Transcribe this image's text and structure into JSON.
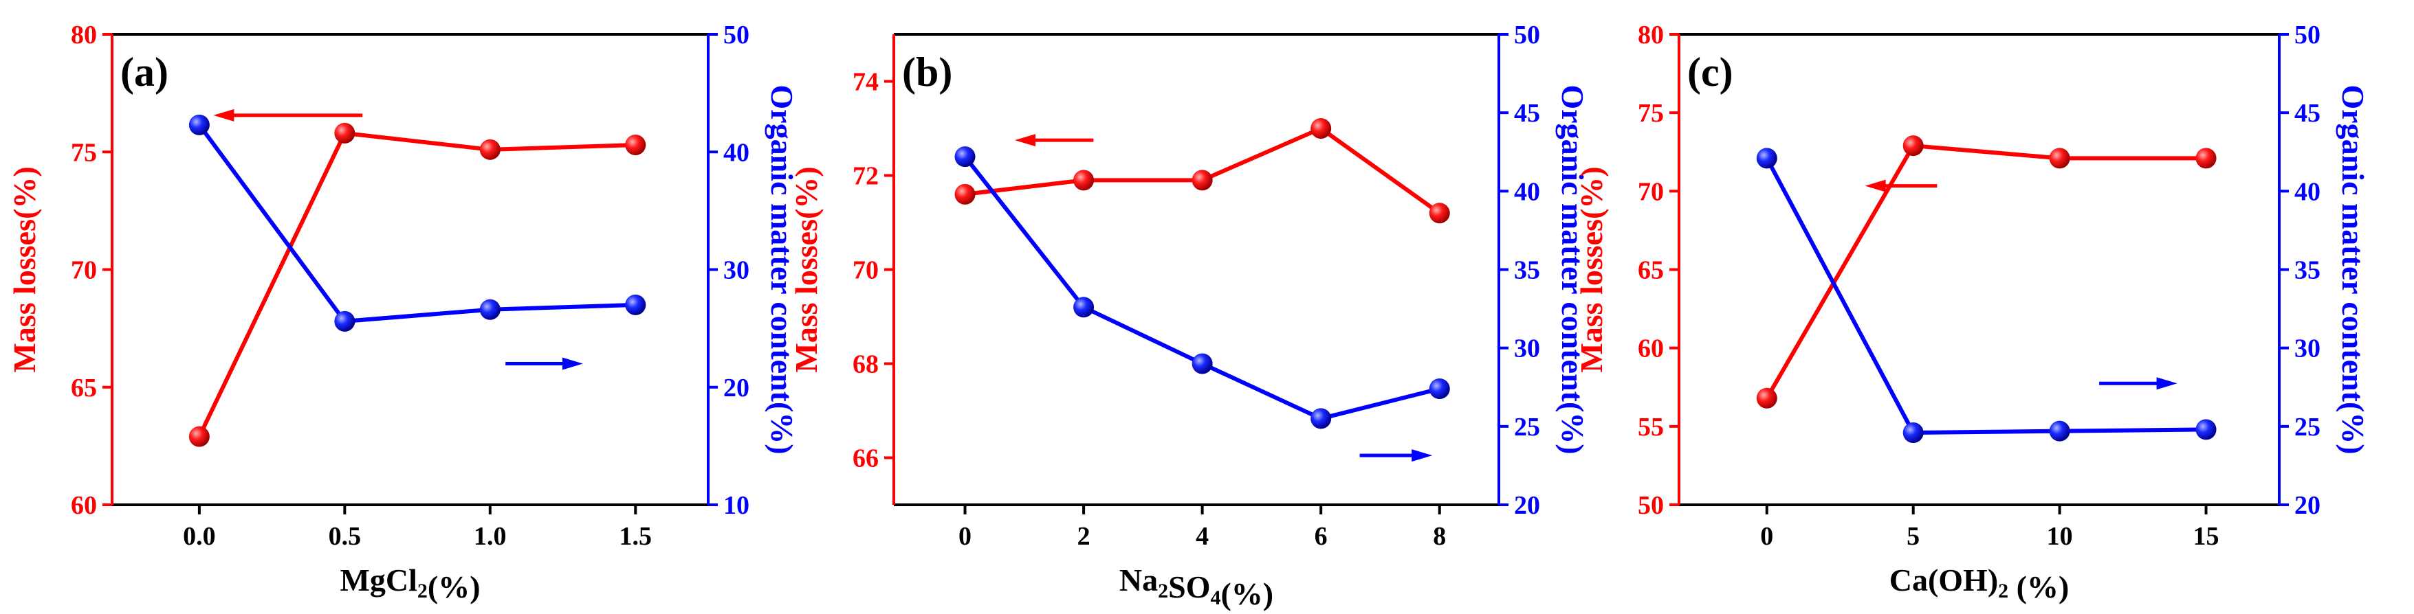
{
  "colors": {
    "left_axis": "#ff0000",
    "right_axis": "#0000ff",
    "frame": "#000000",
    "background": "#ffffff"
  },
  "chart_data": [
    {
      "type": "line",
      "panel_label": "(a)",
      "x": [
        0.0,
        0.5,
        1.0,
        1.5
      ],
      "x_tick_labels": [
        "0.0",
        "0.5",
        "1.0",
        "1.5"
      ],
      "xlim": [
        -0.3,
        1.75
      ],
      "xlabel_parts": [
        {
          "t": "MgCl"
        },
        {
          "t": "2",
          "sub": true
        },
        {
          "t": "(%)"
        }
      ],
      "ylabel_left": "Mass losses(%)",
      "ylim_left": [
        60,
        80
      ],
      "yticks_left": [
        60,
        65,
        70,
        75,
        80
      ],
      "ylabel_right": "Organic matter content(%)",
      "ylim_right": [
        10,
        50
      ],
      "yticks_right": [
        10,
        20,
        30,
        40,
        50
      ],
      "series": [
        {
          "name": "Mass losses",
          "axis": "left",
          "values": [
            62.9,
            75.8,
            75.1,
            75.3
          ]
        },
        {
          "name": "Organic matter content",
          "axis": "right",
          "values": [
            42.3,
            25.6,
            26.6,
            27.0
          ]
        }
      ],
      "annotations": [
        {
          "text": "arrow pointing left toward left axis",
          "series": "Mass losses",
          "direction": "left"
        },
        {
          "text": "arrow pointing right toward right axis",
          "series": "Organic matter content",
          "direction": "right"
        }
      ]
    },
    {
      "type": "line",
      "panel_label": "(b)",
      "x": [
        0,
        2,
        4,
        6,
        8
      ],
      "x_tick_labels": [
        "0",
        "2",
        "4",
        "6",
        "8"
      ],
      "xlim": [
        -1.2,
        9.0
      ],
      "xlabel_parts": [
        {
          "t": "Na"
        },
        {
          "t": "2",
          "sub": true
        },
        {
          "t": "SO"
        },
        {
          "t": "4",
          "sub": true
        },
        {
          "t": "(%)"
        }
      ],
      "ylabel_left": "Mass losses(%)",
      "ylim_left": [
        65,
        75
      ],
      "yticks_left": [
        66,
        68,
        70,
        72,
        74
      ],
      "ylabel_right": "Organic matter content(%)",
      "ylim_right": [
        20,
        50
      ],
      "yticks_right": [
        20,
        25,
        30,
        35,
        40,
        45,
        50
      ],
      "series": [
        {
          "name": "Mass losses",
          "axis": "left",
          "values": [
            71.6,
            71.9,
            71.9,
            73.0,
            71.2
          ]
        },
        {
          "name": "Organic matter content",
          "axis": "right",
          "values": [
            42.2,
            32.6,
            29.0,
            25.5,
            27.4
          ]
        }
      ],
      "annotations": [
        {
          "text": "arrow pointing left toward left axis",
          "series": "Mass losses",
          "direction": "left"
        },
        {
          "text": "arrow pointing right toward right axis",
          "series": "Organic matter content",
          "direction": "right"
        }
      ]
    },
    {
      "type": "line",
      "panel_label": "(c)",
      "x": [
        0,
        5,
        10,
        15
      ],
      "x_tick_labels": [
        "0",
        "5",
        "10",
        "15"
      ],
      "xlim": [
        -3.0,
        17.5
      ],
      "xlabel_parts": [
        {
          "t": "Ca(OH)"
        },
        {
          "t": "2",
          "sub": true
        },
        {
          "t": " (%)"
        }
      ],
      "ylabel_left": "Mass losses(%)",
      "ylim_left": [
        50,
        80
      ],
      "yticks_left": [
        50,
        55,
        60,
        65,
        70,
        75,
        80
      ],
      "ylabel_right": "Organic matter content(%)",
      "ylim_right": [
        20,
        50
      ],
      "yticks_right": [
        20,
        25,
        30,
        35,
        40,
        45,
        50
      ],
      "series": [
        {
          "name": "Mass losses",
          "axis": "left",
          "values": [
            56.8,
            72.9,
            72.1,
            72.1
          ]
        },
        {
          "name": "Organic matter content",
          "axis": "right",
          "values": [
            42.1,
            24.6,
            24.7,
            24.8
          ]
        }
      ],
      "annotations": [
        {
          "text": "arrow pointing left toward left axis",
          "series": "Mass losses",
          "direction": "left"
        },
        {
          "text": "arrow pointing right toward right axis",
          "series": "Organic matter content",
          "direction": "right"
        }
      ]
    }
  ]
}
